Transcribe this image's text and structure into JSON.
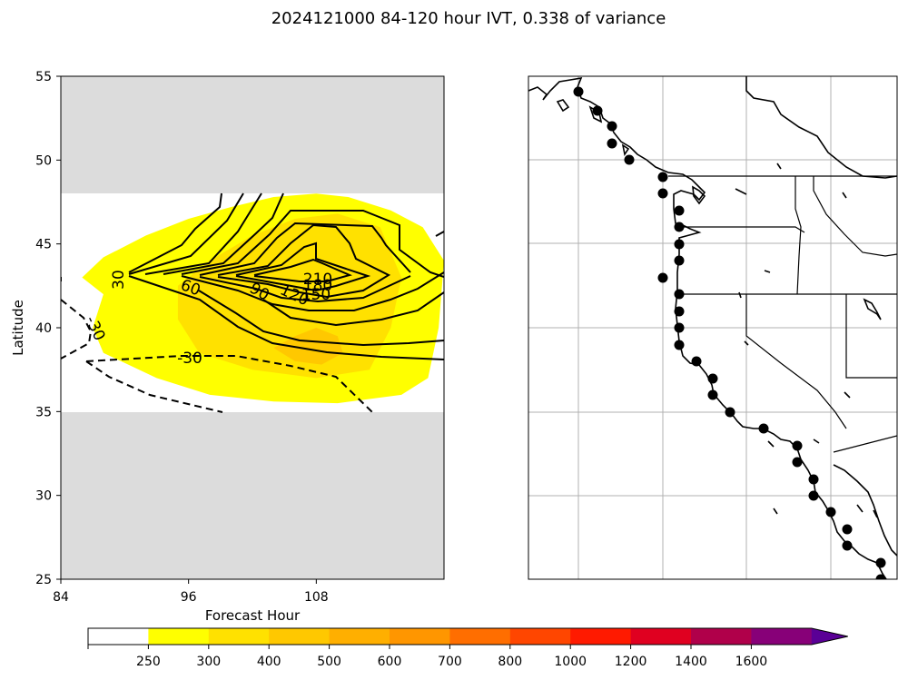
{
  "figure": {
    "title": "2024121000 84-120 hour IVT, 0.338 of variance"
  },
  "chart_data": [
    {
      "type": "contour",
      "xlabel": "Forecast Hour",
      "ylabel": "Latitude",
      "xlim": [
        84,
        120
      ],
      "ylim": [
        25,
        55
      ],
      "xticks": [
        84,
        96,
        108
      ],
      "yticks": [
        25,
        30,
        35,
        40,
        45,
        50,
        55
      ],
      "masked_regions": [
        {
          "lat": [
            48,
            55
          ],
          "color": "#dcdcdc"
        },
        {
          "lat": [
            25,
            35
          ],
          "color": "#dcdcdc"
        }
      ],
      "fill_levels": [
        250,
        300,
        400,
        500,
        600,
        700,
        800,
        1000,
        1200,
        1400,
        1600
      ],
      "contour_labels": [
        "30",
        "60",
        "90",
        "120",
        "150",
        "180",
        "210",
        "-30",
        "-30"
      ],
      "description_fills": [
        {
          "level": 250,
          "polygon": [
            [
              86,
              43
            ],
            [
              88,
              44.2
            ],
            [
              92,
              45.5
            ],
            [
              96,
              46.5
            ],
            [
              100,
              47.2
            ],
            [
              104,
              47.8
            ],
            [
              108,
              48
            ],
            [
              111,
              47.8
            ],
            [
              115,
              47
            ],
            [
              118,
              46
            ],
            [
              120,
              44
            ],
            [
              119.5,
              40
            ],
            [
              118.5,
              37
            ],
            [
              116,
              36
            ],
            [
              110,
              35.5
            ],
            [
              104,
              35.6
            ],
            [
              98,
              36
            ],
            [
              93,
              37
            ],
            [
              88,
              38.5
            ],
            [
              87,
              40
            ],
            [
              88,
              42
            ]
          ]
        },
        {
          "level": 300,
          "polygon": [
            [
              95,
              42.5
            ],
            [
              98,
              44
            ],
            [
              102,
              45.5
            ],
            [
              106,
              46.5
            ],
            [
              110,
              46.8
            ],
            [
              114,
              46
            ],
            [
              116,
              43
            ],
            [
              115,
              40
            ],
            [
              113,
              37.5
            ],
            [
              108,
              37
            ],
            [
              102,
              37.5
            ],
            [
              97,
              38.5
            ],
            [
              95,
              40.5
            ]
          ]
        },
        {
          "level": 400,
          "polygon": [
            [
              104,
              38.8
            ],
            [
              106,
              39.5
            ],
            [
              108,
              40
            ],
            [
              110,
              39.5
            ],
            [
              110.5,
              38.5
            ],
            [
              108.5,
              37.8
            ],
            [
              106,
              38
            ]
          ]
        }
      ],
      "description_contours": [
        {
          "level": 30,
          "label": "30",
          "dashed": false
        },
        {
          "level": 60,
          "label": "60",
          "dashed": false
        },
        {
          "level": 90,
          "label": "90",
          "dashed": false
        },
        {
          "level": 120,
          "label": "120",
          "dashed": false
        },
        {
          "level": 150,
          "label": "150",
          "dashed": false
        },
        {
          "level": 180,
          "label": "180",
          "dashed": false
        },
        {
          "level": 210,
          "label": "210",
          "dashed": false
        },
        {
          "level": -30,
          "label": "-30",
          "dashed": true
        }
      ]
    },
    {
      "type": "map",
      "region": "US West Coast",
      "marker_color": "#000000",
      "points_count": 37
    }
  ],
  "colorbar": {
    "ticks": [
      "250",
      "300",
      "400",
      "500",
      "600",
      "700",
      "800",
      "1000",
      "1200",
      "1400",
      "1600"
    ],
    "colors": [
      "#ffffff",
      "#ffff00",
      "#ffe100",
      "#ffc800",
      "#ffaf00",
      "#ff9600",
      "#ff6e00",
      "#ff4600",
      "#ff1a00",
      "#e00020",
      "#b0004a",
      "#870078",
      "#5a0096"
    ]
  }
}
